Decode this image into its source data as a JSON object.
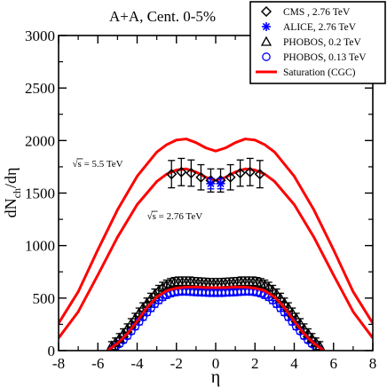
{
  "chart_data": {
    "type": "scatter",
    "title": "A+A, Cent. 0-5%",
    "xlabel": "η",
    "ylabel_main": "dN",
    "ylabel_sub": "ch",
    "ylabel_tail": "/dη",
    "xlim": [
      -8,
      8
    ],
    "ylim": [
      0,
      3000
    ],
    "x_ticks": [
      -8,
      -6,
      -4,
      -2,
      0,
      2,
      4,
      6,
      8
    ],
    "x_tick_labels": [
      "-8",
      "-6",
      "-4",
      "-2",
      "0",
      "2",
      "4",
      "6",
      "8"
    ],
    "y_ticks": [
      0,
      500,
      1000,
      1500,
      2000,
      2500,
      3000
    ],
    "y_tick_labels": [
      "0",
      "500",
      "1000",
      "1500",
      "2000",
      "2500",
      "3000"
    ],
    "grid": false,
    "legend_position": "top-right",
    "legend": [
      {
        "label": "CMS , 2.76 TeV",
        "marker": "diamond",
        "color": "#000000"
      },
      {
        "label": "ALICE,  2.76 TeV",
        "marker": "asterisk",
        "color": "#0000ff"
      },
      {
        "label": "PHOBOS,  0.2 TeV",
        "marker": "triangle",
        "color": "#000000"
      },
      {
        "label": "PHOBOS,  0.13 TeV",
        "marker": "circle",
        "color": "#0000ff"
      },
      {
        "label": "Saturation (CGC)",
        "marker": "line",
        "color": "#ff0000"
      }
    ],
    "annotations": [
      {
        "sqrt": "√s",
        "text": " = 5.5 TeV",
        "x": -7.3,
        "y": 1750
      },
      {
        "sqrt": "√s",
        "text": " = 2.76 TeV",
        "x": -3.5,
        "y": 1250
      }
    ],
    "series": [
      {
        "name": "Saturation (CGC)",
        "color": "#ff0000",
        "curves": [
          {
            "x": [
              -8,
              -7,
              -6,
              -5,
              -4,
              -3,
              -2.5,
              -2,
              -1.5,
              -1,
              -0.5,
              0,
              0.5,
              1,
              1.5,
              2,
              2.5,
              3,
              4,
              5,
              6,
              7,
              8
            ],
            "y": [
              260,
              560,
              960,
              1340,
              1660,
              1890,
              1960,
              2005,
              2015,
              1980,
              1930,
              1900,
              1930,
              1980,
              2015,
              2005,
              1960,
              1890,
              1660,
              1340,
              960,
              560,
              260
            ]
          },
          {
            "x": [
              -8,
              -7,
              -6,
              -5,
              -4,
              -3,
              -2.5,
              -2,
              -1.5,
              -1,
              -0.5,
              0,
              0.5,
              1,
              1.5,
              2,
              2.5,
              3,
              4,
              5,
              6,
              7,
              8
            ],
            "y": [
              120,
              370,
              720,
              1080,
              1390,
              1610,
              1680,
              1720,
              1730,
              1700,
              1650,
              1620,
              1650,
              1700,
              1730,
              1720,
              1680,
              1610,
              1390,
              1080,
              720,
              370,
              120
            ]
          },
          {
            "x": [
              -5.5,
              -5,
              -4.5,
              -4,
              -3.5,
              -3,
              -2.5,
              -2,
              -1.5,
              -1,
              -0.5,
              0,
              0.5,
              1,
              1.5,
              2,
              2.5,
              3,
              3.5,
              4,
              4.5,
              5,
              5.5
            ],
            "y": [
              0,
              70,
              160,
              280,
              410,
              510,
              570,
              595,
              605,
              605,
              600,
              600,
              600,
              605,
              605,
              595,
              570,
              510,
              410,
              280,
              160,
              70,
              0
            ]
          }
        ]
      },
      {
        "name": "CMS , 2.76 TeV",
        "marker": "diamond",
        "color": "#000000",
        "x": [
          -2.25,
          -1.75,
          -1.25,
          -0.75,
          -0.25,
          0.25,
          0.75,
          1.25,
          1.75,
          2.25
        ],
        "y": [
          1680,
          1700,
          1690,
          1650,
          1620,
          1620,
          1650,
          1690,
          1700,
          1680
        ],
        "err": [
          130,
          130,
          125,
          120,
          110,
          110,
          120,
          125,
          130,
          130
        ]
      },
      {
        "name": "ALICE,  2.76 TeV",
        "marker": "asterisk",
        "color": "#0000ff",
        "x": [
          -0.25,
          0.25
        ],
        "y": [
          1590,
          1590
        ],
        "err": [
          50,
          50
        ]
      },
      {
        "name": "PHOBOS,  0.2 TeV",
        "marker": "triangle",
        "color": "#000000",
        "x": [
          -5.3,
          -5.1,
          -4.9,
          -4.7,
          -4.5,
          -4.3,
          -4.1,
          -3.9,
          -3.7,
          -3.5,
          -3.3,
          -3.1,
          -2.9,
          -2.7,
          -2.5,
          -2.3,
          -2.1,
          -1.9,
          -1.7,
          -1.5,
          -1.3,
          -1.1,
          -0.9,
          -0.7,
          -0.5,
          -0.3,
          -0.1,
          0.1,
          0.3,
          0.5,
          0.7,
          0.9,
          1.1,
          1.3,
          1.5,
          1.7,
          1.9,
          2.1,
          2.3,
          2.5,
          2.7,
          2.9,
          3.1,
          3.3,
          3.5,
          3.7,
          3.9,
          4.1,
          4.3,
          4.5,
          4.7,
          4.9,
          5.1,
          5.3
        ],
        "y": [
          45,
          80,
          120,
          165,
          210,
          260,
          310,
          360,
          410,
          455,
          500,
          540,
          575,
          605,
          625,
          640,
          650,
          655,
          655,
          655,
          655,
          650,
          648,
          645,
          643,
          640,
          640,
          640,
          640,
          643,
          645,
          648,
          650,
          655,
          655,
          655,
          655,
          650,
          640,
          625,
          605,
          575,
          540,
          500,
          455,
          410,
          360,
          310,
          260,
          210,
          165,
          120,
          80,
          45
        ],
        "err": [
          40,
          40,
          42,
          42,
          44,
          44,
          45,
          45,
          45,
          45,
          46,
          46,
          46,
          46,
          46,
          46,
          46,
          46,
          46,
          46,
          46,
          46,
          46,
          46,
          46,
          46,
          46,
          46,
          46,
          46,
          46,
          46,
          46,
          46,
          46,
          46,
          46,
          46,
          46,
          46,
          46,
          46,
          46,
          46,
          45,
          45,
          45,
          45,
          44,
          44,
          42,
          42,
          40,
          40
        ]
      },
      {
        "name": "PHOBOS,  0.13 TeV",
        "marker": "circle",
        "color": "#0000ff",
        "x": [
          -5.3,
          -5.1,
          -4.9,
          -4.7,
          -4.5,
          -4.3,
          -4.1,
          -3.9,
          -3.7,
          -3.5,
          -3.3,
          -3.1,
          -2.9,
          -2.7,
          -2.5,
          -2.3,
          -2.1,
          -1.9,
          -1.7,
          -1.5,
          -1.3,
          -1.1,
          -0.9,
          -0.7,
          -0.5,
          -0.3,
          -0.1,
          0.1,
          0.3,
          0.5,
          0.7,
          0.9,
          1.1,
          1.3,
          1.5,
          1.7,
          1.9,
          2.1,
          2.3,
          2.5,
          2.7,
          2.9,
          3.1,
          3.3,
          3.5,
          3.7,
          3.9,
          4.1,
          4.3,
          4.5,
          4.7,
          4.9,
          5.1,
          5.3
        ],
        "y": [
          10,
          35,
          65,
          100,
          140,
          185,
          230,
          275,
          320,
          365,
          405,
          445,
          480,
          510,
          530,
          545,
          555,
          560,
          562,
          562,
          560,
          558,
          555,
          553,
          552,
          550,
          550,
          550,
          550,
          552,
          553,
          555,
          558,
          560,
          562,
          562,
          560,
          555,
          545,
          530,
          510,
          480,
          445,
          405,
          365,
          320,
          275,
          230,
          185,
          140,
          100,
          65,
          35,
          10
        ],
        "err": [
          25,
          25,
          26,
          26,
          28,
          28,
          30,
          30,
          30,
          30,
          32,
          32,
          32,
          32,
          32,
          32,
          32,
          32,
          32,
          32,
          32,
          32,
          32,
          32,
          32,
          32,
          32,
          32,
          32,
          32,
          32,
          32,
          32,
          32,
          32,
          32,
          32,
          32,
          32,
          32,
          32,
          32,
          32,
          32,
          30,
          30,
          30,
          30,
          28,
          28,
          26,
          26,
          25,
          25
        ]
      }
    ]
  }
}
